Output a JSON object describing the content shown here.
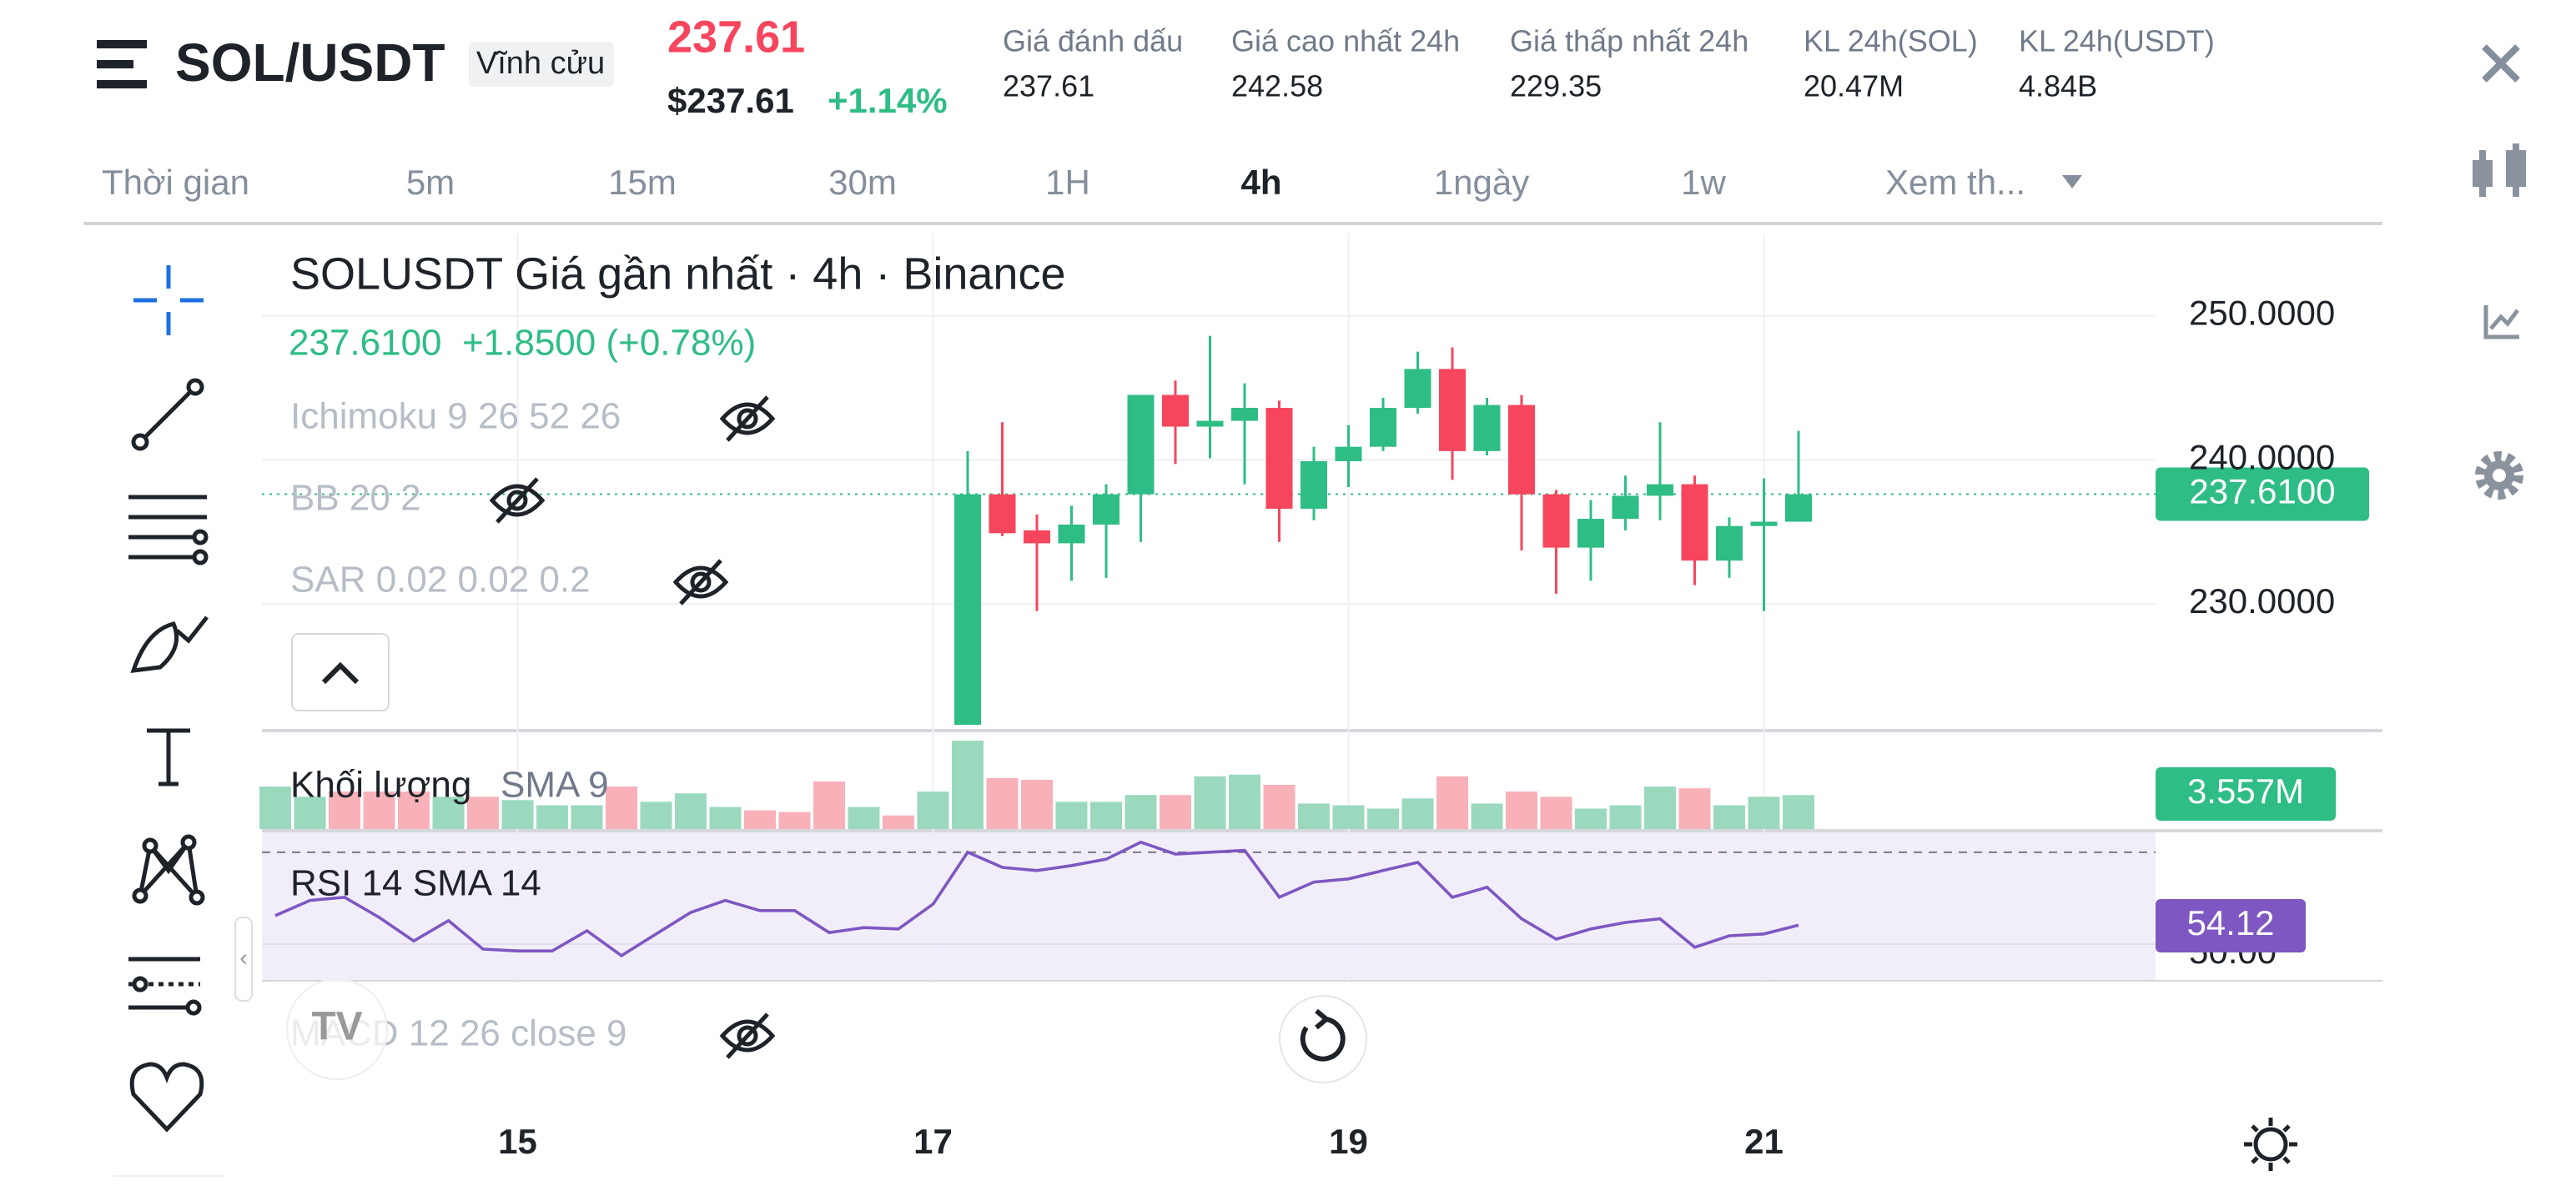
{
  "header": {
    "symbol": "SOL/USDT",
    "badge": "Vĩnh cửu",
    "price": "237.61",
    "price_usd": "$237.61",
    "change": "+1.14%",
    "stats": [
      {
        "label": "Giá đánh dấu",
        "value": "237.61"
      },
      {
        "label": "Giá cao nhất 24h",
        "value": "242.58"
      },
      {
        "label": "Giá thấp nhất 24h",
        "value": "229.35"
      },
      {
        "label": "KL 24h(SOL)",
        "value": "20.47M"
      },
      {
        "label": "KL 24h(USDT)",
        "value": "4.84B"
      }
    ]
  },
  "intervals": {
    "items": [
      "Thời gian",
      "5m",
      "15m",
      "30m",
      "1H",
      "4h",
      "1ngày",
      "1w",
      "Xem th..."
    ],
    "active": 5
  },
  "legend": {
    "title": "SOLUSDT Giá gần nhất · 4h · Binance",
    "last": "237.6100  +1.8500 (+0.78%)",
    "indicators": [
      "Ichimoku 9 26 52 26",
      "BB 20 2",
      "SAR 0.02 0.02 0.2"
    ],
    "volume_label": "Khối lượng",
    "volume_sma": "SMA 9",
    "rsi_label": "RSI 14 SMA 14",
    "macd_label": "MACD 12 26 close 9"
  },
  "chart_data": {
    "type": "candlestick",
    "categories": [
      null,
      null,
      null,
      null,
      null,
      null,
      null,
      "15",
      null,
      null,
      null,
      null,
      null,
      null,
      null,
      null,
      null,
      null,
      null,
      "17",
      null,
      null,
      null,
      null,
      null,
      null,
      null,
      null,
      null,
      null,
      null,
      "19",
      null,
      null,
      null,
      null,
      null,
      null,
      null,
      null,
      null,
      null,
      null,
      "21",
      null
    ],
    "open": [
      null,
      null,
      null,
      null,
      null,
      null,
      null,
      null,
      null,
      null,
      null,
      null,
      null,
      null,
      null,
      null,
      null,
      null,
      null,
      null,
      221.6,
      237.6,
      235.1,
      234.2,
      235.5,
      237.6,
      244.5,
      242.3,
      242.7,
      243.6,
      236.6,
      239.9,
      240.9,
      243.6,
      246.3,
      240.6,
      243.8,
      237.6,
      233.9,
      235.9,
      237.5,
      238.3,
      233.0,
      235.4,
      235.7
    ],
    "high": [
      null,
      null,
      null,
      null,
      null,
      null,
      null,
      null,
      null,
      null,
      null,
      null,
      null,
      null,
      null,
      null,
      null,
      null,
      null,
      null,
      240.6,
      242.6,
      236.2,
      236.8,
      238.3,
      244.5,
      245.5,
      248.6,
      245.3,
      244.1,
      240.9,
      242.4,
      244.3,
      247.5,
      247.8,
      244.3,
      244.5,
      237.9,
      237.2,
      238.9,
      242.6,
      238.9,
      236.0,
      238.7,
      242.0
    ],
    "low": [
      null,
      null,
      null,
      null,
      null,
      null,
      null,
      null,
      null,
      null,
      null,
      null,
      null,
      null,
      null,
      null,
      null,
      null,
      null,
      null,
      221.6,
      234.7,
      229.5,
      231.6,
      231.8,
      234.3,
      239.7,
      240.1,
      238.3,
      234.3,
      235.8,
      238.1,
      240.6,
      243.2,
      238.6,
      240.3,
      233.7,
      230.7,
      231.6,
      235.1,
      235.8,
      231.3,
      231.8,
      229.5,
      235.7
    ],
    "close": [
      null,
      null,
      null,
      null,
      null,
      null,
      null,
      null,
      null,
      null,
      null,
      null,
      null,
      null,
      null,
      null,
      null,
      null,
      null,
      null,
      237.6,
      234.9,
      234.2,
      235.5,
      237.6,
      244.5,
      242.3,
      242.7,
      243.6,
      236.6,
      239.9,
      240.9,
      243.6,
      246.3,
      240.6,
      243.8,
      237.6,
      233.9,
      235.9,
      237.5,
      238.3,
      233.0,
      235.4,
      235.7,
      237.6
    ],
    "up_color": "#2ebd85",
    "down_color": "#f6465d",
    "ylim": [
      221.2,
      255.7
    ],
    "yticks": [
      {
        "value": 250,
        "label": "250.0000"
      },
      {
        "value": 240,
        "label": "240.0000"
      },
      {
        "value": 230,
        "label": "230.0000"
      }
    ],
    "grid": true,
    "last_price": {
      "value": 237.61,
      "label": "237.6100"
    },
    "volume": {
      "values": [
        4.45,
        3.38,
        3.92,
        3.92,
        3.92,
        3.38,
        3.38,
        3.03,
        2.49,
        2.49,
        4.45,
        2.85,
        3.74,
        2.31,
        1.96,
        1.78,
        4.98,
        2.31,
        1.42,
        3.92,
        9.26,
        5.34,
        5.16,
        2.85,
        2.85,
        3.56,
        3.56,
        5.52,
        5.7,
        4.63,
        2.67,
        2.49,
        2.14,
        3.2,
        5.52,
        2.67,
        3.92,
        3.38,
        2.14,
        2.49,
        4.45,
        4.27,
        2.49,
        3.38,
        3.557
      ],
      "colors": [
        "#9bd9bf",
        "#9bd9bf",
        "#f8b0b9",
        "#f8b0b9",
        "#f8b0b9",
        "#9bd9bf",
        "#f8b0b9",
        "#9bd9bf",
        "#9bd9bf",
        "#9bd9bf",
        "#f8b0b9",
        "#9bd9bf",
        "#9bd9bf",
        "#9bd9bf",
        "#f8b0b9",
        "#f8b0b9",
        "#f8b0b9",
        "#9bd9bf",
        "#f8b0b9",
        "#9bd9bf",
        "#9bd9bf",
        "#f8b0b9",
        "#f8b0b9",
        "#9bd9bf",
        "#9bd9bf",
        "#9bd9bf",
        "#f8b0b9",
        "#9bd9bf",
        "#9bd9bf",
        "#f8b0b9",
        "#9bd9bf",
        "#9bd9bf",
        "#9bd9bf",
        "#9bd9bf",
        "#f8b0b9",
        "#9bd9bf",
        "#f8b0b9",
        "#f8b0b9",
        "#9bd9bf",
        "#9bd9bf",
        "#9bd9bf",
        "#f8b0b9",
        "#9bd9bf",
        "#9bd9bf",
        "#9bd9bf"
      ],
      "value_label": "3.557M"
    },
    "rsi": {
      "values": [
        56.2,
        59.5,
        60.2,
        55.8,
        50.7,
        55.1,
        48.9,
        48.5,
        48.5,
        52.9,
        47.5,
        52.2,
        56.9,
        59.5,
        57.3,
        57.3,
        52.5,
        53.6,
        53.3,
        58.7,
        70.0,
        66.7,
        66.0,
        67.1,
        68.5,
        72.2,
        69.6,
        70.0,
        70.4,
        60.2,
        63.5,
        64.2,
        66.0,
        67.8,
        60.2,
        62.4,
        55.5,
        51.1,
        53.3,
        54.7,
        55.5,
        49.3,
        51.8,
        52.2,
        54.12
      ],
      "color": "#7e57c2",
      "ylim": [
        42,
        74.7
      ],
      "upper_band": 70,
      "yticks": [
        {
          "value": 50,
          "label": "50.00"
        }
      ],
      "value_label": "54.12"
    }
  }
}
